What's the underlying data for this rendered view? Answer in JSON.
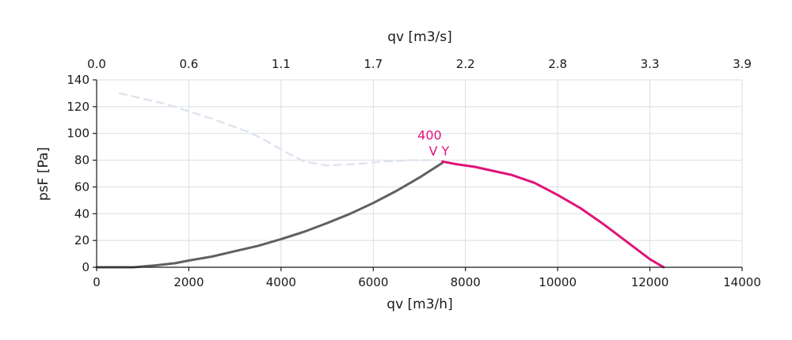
{
  "chart_data": {
    "type": "line",
    "xlabel": "qv [m3/h]",
    "x2label": "qv [m3/s]",
    "ylabel": "psF [Pa]",
    "xlim": [
      0,
      14000
    ],
    "ylim": [
      0,
      140
    ],
    "x_ticks": [
      "0",
      "2000",
      "4000",
      "6000",
      "8000",
      "10000",
      "12000",
      "14000"
    ],
    "x2_ticks": [
      "0.0",
      "0.6",
      "1.1",
      "1.7",
      "2.2",
      "2.8",
      "3.3",
      "3.9"
    ],
    "y_ticks": [
      "0",
      "20",
      "40",
      "60",
      "80",
      "100",
      "120",
      "140"
    ],
    "grid": true,
    "annotation": {
      "lines": [
        "400",
        "V Y"
      ],
      "x": 7600,
      "y": 80
    },
    "series": [
      {
        "style": "dashed",
        "color": "#dfe5ee",
        "x": [
          500,
          1500,
          2500,
          3300,
          3700,
          4100,
          4500,
          5000,
          5600,
          6200,
          6800,
          7300
        ],
        "y": [
          130,
          122,
          111,
          101,
          94,
          86,
          79,
          76,
          77,
          79,
          80,
          80
        ]
      },
      {
        "style": "solid",
        "color": "#606060",
        "x": [
          0,
          800,
          1300,
          1700,
          2000,
          2500,
          3000,
          3500,
          4000,
          4500,
          5000,
          5500,
          6000,
          6500,
          7000,
          7500
        ],
        "y": [
          0,
          0,
          1.5,
          3,
          5,
          8,
          12,
          16,
          21,
          26.5,
          33,
          40,
          48,
          57,
          67,
          78
        ]
      },
      {
        "style": "solid",
        "color": "#e0137a",
        "x": [
          7500,
          7800,
          8200,
          8600,
          9000,
          9500,
          10000,
          10500,
          11000,
          11500,
          12000,
          12300
        ],
        "y": [
          79,
          77,
          75,
          72,
          69,
          63,
          54,
          44,
          32,
          19,
          6,
          0
        ]
      }
    ]
  }
}
